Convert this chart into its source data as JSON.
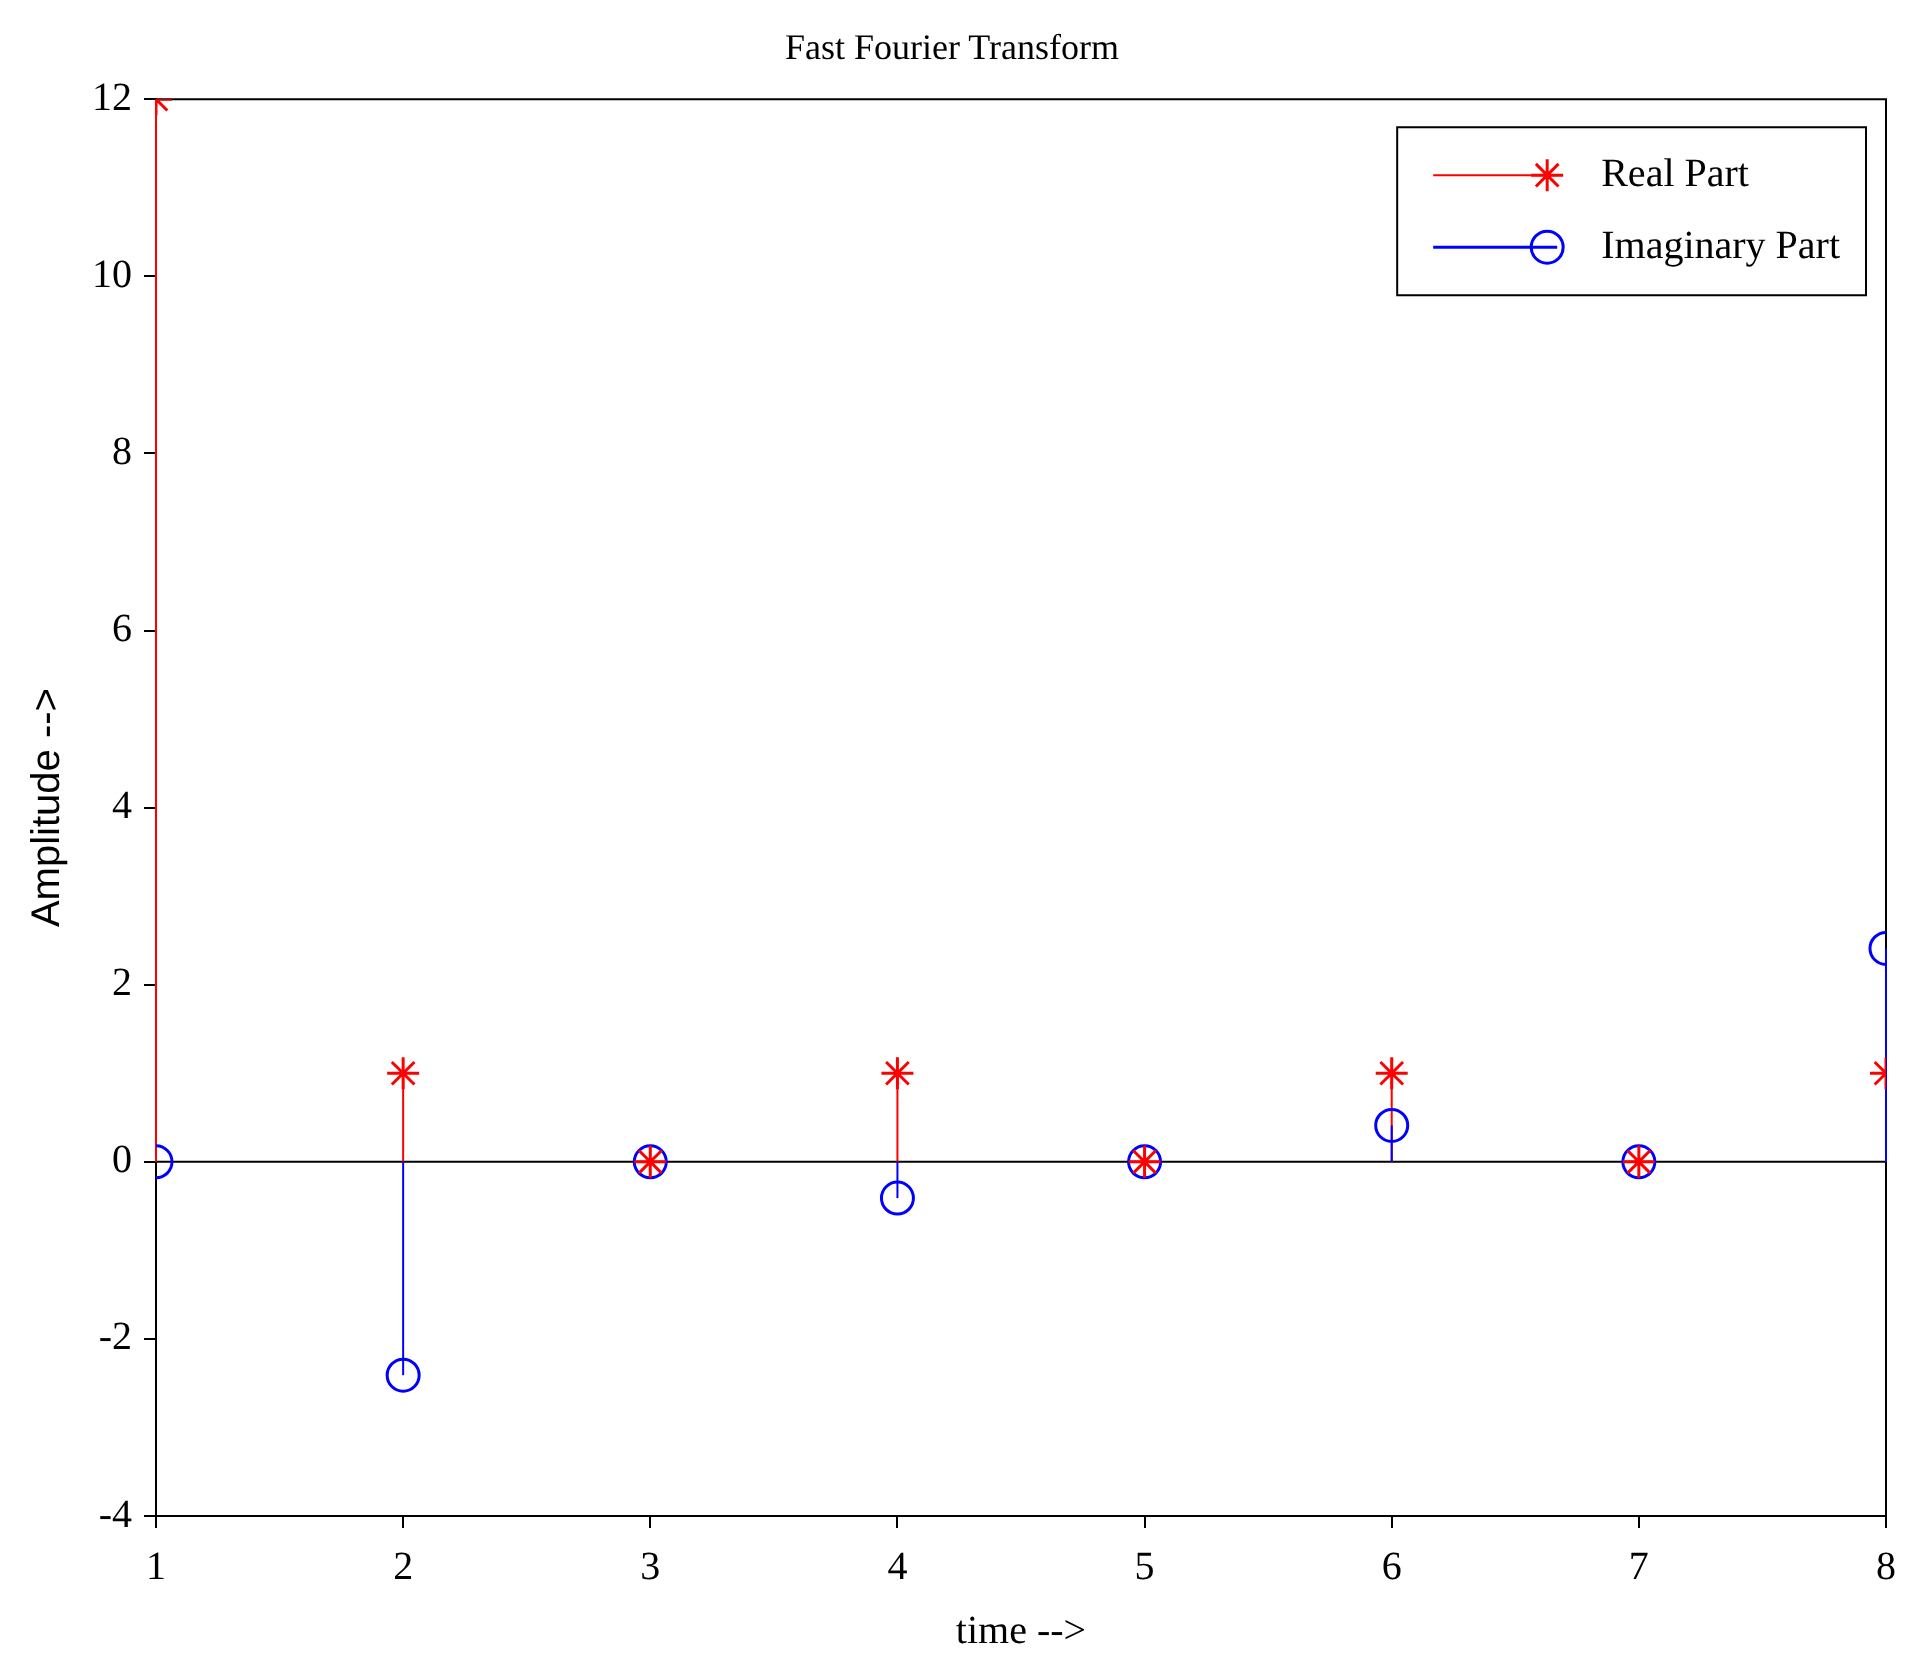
{
  "chart_data": {
    "type": "lollipop",
    "title": "Fast Fourier Transform",
    "xlabel": "time -->",
    "ylabel": "Amplitude -->",
    "x": [
      1,
      2,
      3,
      4,
      5,
      6,
      7,
      8
    ],
    "series": [
      {
        "name": "Real Part",
        "color": "#ff0000",
        "marker": "cross",
        "values": [
          12,
          1,
          0,
          1,
          0,
          1,
          0,
          1
        ]
      },
      {
        "name": "Imaginary Part",
        "color": "#0000ff",
        "marker": "circle",
        "values": [
          0,
          -2.41,
          0,
          -0.41,
          0,
          0.41,
          0,
          2.41
        ]
      }
    ],
    "xlim": [
      1,
      8
    ],
    "xticks": [
      1,
      2,
      3,
      4,
      5,
      6,
      7,
      8
    ],
    "ylim": [
      -4,
      12
    ],
    "yticks": [
      -4,
      -2,
      0,
      2,
      4,
      6,
      8,
      10,
      12
    ],
    "ref_lines": [
      {
        "axis": "y",
        "value": 0,
        "color": "#000000"
      }
    ],
    "grid": false,
    "legend": "top right"
  }
}
